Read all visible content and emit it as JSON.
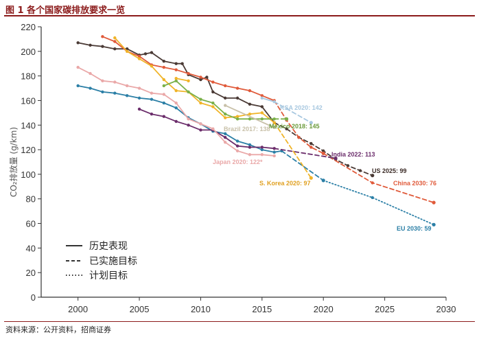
{
  "header": {
    "title": "图 1 各个国家碳排放要求一览"
  },
  "footer": {
    "source": "资料来源：公开资料，招商证券"
  },
  "chart_data": {
    "type": "line",
    "ylabel": "CO₂排放量 (g/km)",
    "xlabel": "",
    "xlim": [
      1997,
      2030
    ],
    "ylim": [
      0,
      220
    ],
    "x_ticks": [
      2000,
      2005,
      2010,
      2015,
      2020,
      2025,
      2030
    ],
    "y_ticks": [
      0,
      20,
      40,
      60,
      80,
      100,
      120,
      140,
      160,
      180,
      200,
      220
    ],
    "grid": false,
    "legend": {
      "position": "bottom-left",
      "entries": [
        {
          "label": "历史表现",
          "style": "solid"
        },
        {
          "label": "已实施目标",
          "style": "dashed"
        },
        {
          "label": "计划目标",
          "style": "dotted"
        }
      ]
    },
    "series": [
      {
        "label": "US 2025: 99",
        "color": "#4a3a35",
        "segments": [
          {
            "style": "solid",
            "points": [
              [
                2000,
                207
              ],
              [
                2001,
                205
              ],
              [
                2002,
                204
              ],
              [
                2003,
                202
              ],
              [
                2004,
                202
              ],
              [
                2005,
                197
              ],
              [
                2005.5,
                198
              ],
              [
                2006,
                199
              ],
              [
                2007,
                192
              ],
              [
                2008,
                190
              ],
              [
                2008.5,
                190
              ],
              [
                2009,
                181
              ],
              [
                2010,
                177
              ],
              [
                2010.5,
                179
              ],
              [
                2011,
                167
              ],
              [
                2012,
                162
              ],
              [
                2013,
                162
              ],
              [
                2014,
                157
              ],
              [
                2015,
                155
              ],
              [
                2016,
                142
              ]
            ]
          },
          {
            "style": "dashed",
            "points": [
              [
                2016,
                142
              ],
              [
                2017,
                137
              ],
              [
                2018,
                130
              ],
              [
                2019,
                125
              ],
              [
                2020,
                119
              ],
              [
                2021,
                112
              ],
              [
                2022,
                107
              ],
              [
                2023,
                103
              ],
              [
                2024,
                99
              ]
            ]
          }
        ]
      },
      {
        "label": "China 2030: 76",
        "color": "#e05a3a",
        "segments": [
          {
            "style": "solid",
            "points": [
              [
                2002,
                212
              ],
              [
                2003,
                208
              ],
              [
                2004,
                200
              ],
              [
                2005,
                196
              ],
              [
                2006,
                189
              ],
              [
                2007,
                187
              ],
              [
                2008,
                185
              ],
              [
                2009,
                182
              ],
              [
                2010,
                179
              ],
              [
                2011,
                175
              ],
              [
                2012,
                172
              ],
              [
                2013,
                170
              ],
              [
                2014,
                168
              ],
              [
                2015,
                164
              ],
              [
                2016,
                160
              ]
            ]
          },
          {
            "style": "dashed",
            "points": [
              [
                2016,
                160
              ],
              [
                2017,
                144
              ],
              [
                2018,
                130
              ],
              [
                2019,
                122
              ],
              [
                2020,
                117
              ]
            ]
          },
          {
            "style": "dashed",
            "points": [
              [
                2020,
                117
              ],
              [
                2024,
                93
              ],
              [
                2029,
                77
              ]
            ]
          }
        ]
      },
      {
        "label": "EU 2030: 59",
        "color": "#2b7fa6",
        "segments": [
          {
            "style": "solid",
            "points": [
              [
                2000,
                172
              ],
              [
                2001,
                170
              ],
              [
                2002,
                167
              ],
              [
                2003,
                166
              ],
              [
                2004,
                164
              ],
              [
                2005,
                162
              ],
              [
                2006,
                161
              ],
              [
                2007,
                158
              ],
              [
                2008,
                154
              ],
              [
                2009,
                146
              ],
              [
                2010,
                141
              ],
              [
                2011,
                135
              ],
              [
                2012,
                133
              ],
              [
                2013,
                127
              ],
              [
                2014,
                124
              ],
              [
                2015,
                120
              ],
              [
                2016,
                118
              ],
              [
                2016.6,
                119
              ]
            ]
          },
          {
            "style": "dashed",
            "points": [
              [
                2016.6,
                119
              ],
              [
                2020,
                95
              ]
            ]
          },
          {
            "style": "dotted",
            "points": [
              [
                2020,
                95
              ],
              [
                2024,
                81
              ],
              [
                2029,
                59
              ]
            ]
          }
        ]
      },
      {
        "label": "India 2022: 113",
        "color": "#6b2d6b",
        "segments": [
          {
            "style": "solid",
            "points": [
              [
                2005,
                153
              ],
              [
                2006,
                149
              ],
              [
                2007,
                147
              ],
              [
                2008,
                143
              ],
              [
                2009,
                140
              ],
              [
                2010,
                136
              ],
              [
                2011,
                136
              ],
              [
                2012,
                130
              ],
              [
                2013,
                123
              ],
              [
                2014,
                122
              ],
              [
                2015,
                122
              ],
              [
                2016,
                121
              ]
            ]
          },
          {
            "style": "dashed",
            "points": [
              [
                2016,
                121
              ],
              [
                2021,
                113
              ]
            ]
          }
        ]
      },
      {
        "label": "Japan 2020: 122*",
        "color": "#eaa8a8",
        "segments": [
          {
            "style": "solid",
            "points": [
              [
                2000,
                187
              ],
              [
                2001,
                182
              ],
              [
                2002,
                176
              ],
              [
                2003,
                175
              ],
              [
                2004,
                172
              ],
              [
                2005,
                170
              ],
              [
                2006,
                166
              ],
              [
                2007,
                165
              ],
              [
                2008,
                158
              ],
              [
                2009,
                145
              ],
              [
                2010,
                141
              ],
              [
                2011,
                137
              ],
              [
                2012,
                126
              ],
              [
                2013,
                119
              ],
              [
                2014,
                116
              ],
              [
                2015,
                116
              ],
              [
                2016,
                115
              ]
            ]
          }
        ]
      },
      {
        "label": "S. Korea 2020: 97",
        "color": "#f0b429",
        "segments": [
          {
            "style": "solid",
            "points": [
              [
                2003,
                211
              ],
              [
                2004,
                200
              ],
              [
                2005,
                194
              ],
              [
                2006,
                188
              ],
              [
                2007,
                177
              ],
              [
                2008,
                168
              ],
              [
                2009,
                167
              ],
              [
                2010,
                158
              ],
              [
                2011,
                155
              ],
              [
                2012,
                146
              ],
              [
                2013,
                147
              ],
              [
                2014,
                149
              ],
              [
                2015,
                150
              ],
              [
                2016,
                142
              ]
            ]
          },
          {
            "style": "dashed",
            "points": [
              [
                2016,
                142
              ],
              [
                2019,
                97
              ]
            ]
          }
        ]
      },
      {
        "label": "Mexico 2018: 145",
        "color": "#7ab04a",
        "segments": [
          {
            "style": "solid",
            "points": [
              [
                2007,
                172
              ],
              [
                2008,
                176
              ],
              [
                2009,
                167
              ],
              [
                2010,
                161
              ],
              [
                2011,
                158
              ],
              [
                2012,
                149
              ],
              [
                2013,
                145
              ],
              [
                2014,
                145
              ],
              [
                2015,
                145
              ],
              [
                2016,
                145
              ]
            ]
          },
          {
            "style": "dashed",
            "points": [
              [
                2016,
                145
              ],
              [
                2017,
                145
              ]
            ]
          }
        ]
      },
      {
        "label": "Brazil 2017: 138",
        "color": "#c8c0a8",
        "segments": [
          {
            "style": "solid",
            "points": [
              [
                2012,
                156
              ],
              [
                2016,
                138
              ]
            ]
          }
        ]
      },
      {
        "label": "KSA 2020: 142",
        "color": "#a8c8e0",
        "segments": [
          {
            "style": "solid",
            "points": [
              [
                2015,
                162
              ],
              [
                2016,
                159
              ]
            ]
          },
          {
            "style": "dashed",
            "points": [
              [
                2016,
                159
              ],
              [
                2019,
                142
              ]
            ]
          }
        ]
      },
      {
        "label": "",
        "color": "#f0b429",
        "segments": [
          {
            "style": "solid",
            "points": [
              [
                2008,
                178
              ],
              [
                2009,
                176
              ]
            ]
          }
        ]
      }
    ],
    "series_labels": [
      {
        "text": "KSA 2020: 142",
        "color": "#a8c8e0"
      },
      {
        "text": "Mexico 2018: 145",
        "color": "#6a9a3a"
      },
      {
        "text": "Brazil 2017: 138",
        "color": "#c8c0a8"
      },
      {
        "text": "India 2022: 113",
        "color": "#6b2d6b"
      },
      {
        "text": "Japan 2020: 122*",
        "color": "#eaa8a8"
      },
      {
        "text": "US 2025: 99",
        "color": "#3a2a25"
      },
      {
        "text": "S. Korea 2020: 97",
        "color": "#e0a020"
      },
      {
        "text": "China 2030: 76",
        "color": "#e05a3a"
      },
      {
        "text": "EU 2030: 59",
        "color": "#2b7fa6"
      }
    ]
  }
}
